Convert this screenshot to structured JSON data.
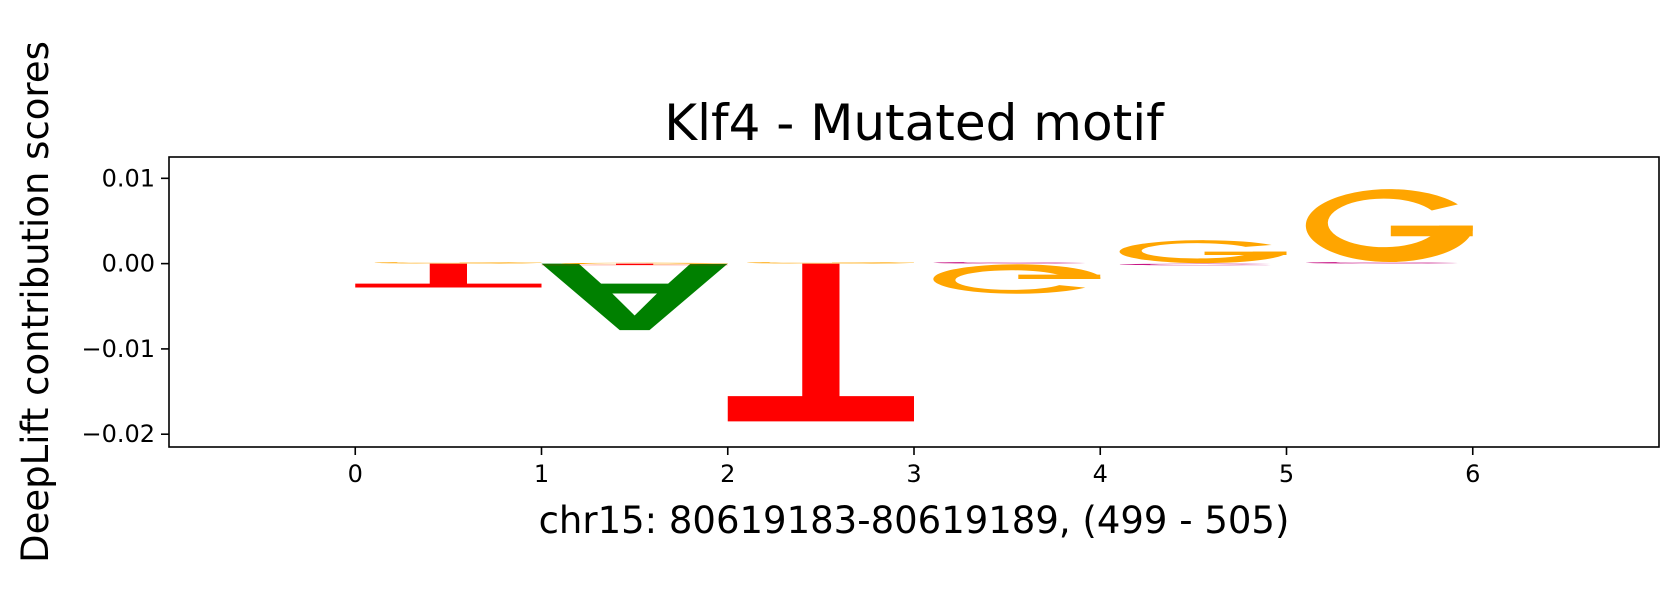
{
  "chart_data": {
    "type": "sequence-logo",
    "title": "Klf4 - Mutated motif",
    "xlabel": "chr15: 80619183-80619189, (499 - 505)",
    "ylabel": "DeepLift contribution scores",
    "xlim": [
      -1,
      7
    ],
    "ylim": [
      -0.0215,
      0.0125
    ],
    "x_ticks": [
      "0",
      "1",
      "2",
      "3",
      "4",
      "5",
      "6"
    ],
    "y_ticks": [
      {
        "value": 0.01,
        "label": "0.01"
      },
      {
        "value": 0.0,
        "label": "0.00"
      },
      {
        "value": -0.01,
        "label": "−0.01"
      },
      {
        "value": -0.02,
        "label": "−0.02"
      }
    ],
    "colors": {
      "A": "#008000",
      "C": "#c71585",
      "G": "#ffa500",
      "T": "#ff0000"
    },
    "positions": [
      {
        "x": 0,
        "letters": [
          {
            "base": "T",
            "score": -0.0028
          },
          {
            "base": "G",
            "score": 0.0002
          }
        ]
      },
      {
        "x": 1,
        "letters": [
          {
            "base": "A",
            "score": -0.0078
          },
          {
            "base": "G",
            "score": 0.0001
          },
          {
            "base": "T",
            "score": -0.0001
          }
        ]
      },
      {
        "x": 2,
        "letters": [
          {
            "base": "T",
            "score": -0.0185
          },
          {
            "base": "G",
            "score": 0.0002
          }
        ]
      },
      {
        "x": 3,
        "letters": [
          {
            "base": "G",
            "score": -0.0036
          },
          {
            "base": "C",
            "score": 0.0002
          }
        ]
      },
      {
        "x": 4,
        "letters": [
          {
            "base": "G",
            "score": 0.0028
          },
          {
            "base": "C",
            "score": -0.0002
          }
        ]
      },
      {
        "x": 5,
        "letters": [
          {
            "base": "G",
            "score": 0.0089
          },
          {
            "base": "C",
            "score": 0.0002
          }
        ]
      }
    ]
  }
}
